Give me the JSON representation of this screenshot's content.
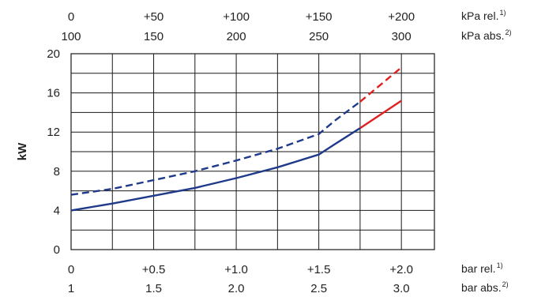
{
  "chart_data": {
    "type": "line",
    "title": "",
    "ylabel": "kW",
    "xlim": [
      0,
      2.2
    ],
    "ylim": [
      0,
      20
    ],
    "grid": true,
    "legend": "none",
    "x_axis_bottom_primary": {
      "ticks": [
        0,
        0.5,
        1.0,
        1.5,
        2.0
      ],
      "labels": [
        "0",
        "+0.5",
        "+1.0",
        "+1.5",
        "+2.0"
      ],
      "unit": "bar rel.",
      "unit_sup": "1)"
    },
    "x_axis_bottom_secondary": {
      "ticks": [
        0,
        0.5,
        1.0,
        1.5,
        2.0
      ],
      "labels": [
        "1",
        "1.5",
        "2.0",
        "2.5",
        "3.0"
      ],
      "unit": "bar abs.",
      "unit_sup": "2)"
    },
    "x_axis_top_primary": {
      "ticks": [
        0,
        0.5,
        1.0,
        1.5,
        2.0
      ],
      "labels": [
        "0",
        "+50",
        "+100",
        "+150",
        "+200"
      ],
      "unit": "kPa rel.",
      "unit_sup": "1)"
    },
    "x_axis_top_secondary": {
      "ticks": [
        0,
        0.5,
        1.0,
        1.5,
        2.0
      ],
      "labels": [
        "100",
        "150",
        "200",
        "250",
        "300"
      ],
      "unit": "kPa abs.",
      "unit_sup": "2)"
    },
    "y_axis": {
      "ticks": [
        0,
        4,
        8,
        12,
        16,
        20
      ],
      "labels": [
        "0",
        "4",
        "8",
        "12",
        "16",
        "20"
      ]
    },
    "series": [
      {
        "style": "solid",
        "color": "#1f3a8a",
        "x": [
          0,
          0.25,
          0.5,
          0.75,
          1.0,
          1.25,
          1.5,
          1.6,
          1.75
        ],
        "y": [
          4.0,
          4.7,
          5.5,
          6.3,
          7.3,
          8.4,
          9.7,
          10.8,
          12.4
        ]
      },
      {
        "style": "solid",
        "color": "#e02020",
        "x": [
          1.75,
          2.0
        ],
        "y": [
          12.4,
          15.2
        ]
      },
      {
        "style": "dashed",
        "color": "#1f3a8a",
        "x": [
          0,
          0.25,
          0.5,
          0.75,
          1.0,
          1.25,
          1.5,
          1.6,
          1.75
        ],
        "y": [
          5.6,
          6.2,
          7.1,
          8.0,
          9.1,
          10.3,
          11.8,
          13.2,
          15.1
        ]
      },
      {
        "style": "dashed",
        "color": "#e02020",
        "x": [
          1.75,
          2.0
        ],
        "y": [
          15.1,
          18.6
        ]
      }
    ]
  }
}
